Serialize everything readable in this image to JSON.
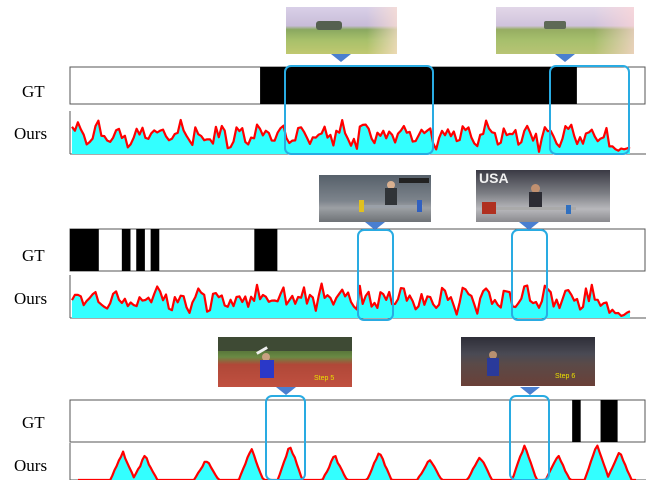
{
  "labels": {
    "gt": "GT",
    "ours": "Ours"
  },
  "colors": {
    "highlight": "#29abe2",
    "pointer": "#4a7fd0",
    "curve": "#ff0000",
    "fill": "#33ffff",
    "gt_bar": "#000000"
  },
  "panels": [
    {
      "id": "field",
      "gt_segments": [
        [
          0.33,
          0.88
        ]
      ],
      "curve_seed": 1,
      "curve_style": "dense",
      "thumbnails": [
        {
          "caption": "",
          "scene": "field"
        },
        {
          "caption": "",
          "scene": "field"
        }
      ]
    },
    {
      "id": "weightlifting",
      "gt_segments": [
        [
          0.0,
          0.05
        ],
        [
          0.09,
          0.105
        ],
        [
          0.115,
          0.13
        ],
        [
          0.14,
          0.155
        ],
        [
          0.32,
          0.36
        ]
      ],
      "curve_seed": 2,
      "curve_style": "dense",
      "thumbnails": [
        {
          "caption": "",
          "scene": "gym"
        },
        {
          "caption": "USA",
          "scene": "gym"
        }
      ]
    },
    {
      "id": "javelin",
      "gt_segments": [
        [
          0.87,
          0.885
        ],
        [
          0.92,
          0.95
        ]
      ],
      "curve_seed": 3,
      "curve_style": "peaks",
      "thumbnails": [
        {
          "caption": "Step 5",
          "scene": "track"
        },
        {
          "caption": "Step 6",
          "scene": "track"
        }
      ]
    }
  ]
}
